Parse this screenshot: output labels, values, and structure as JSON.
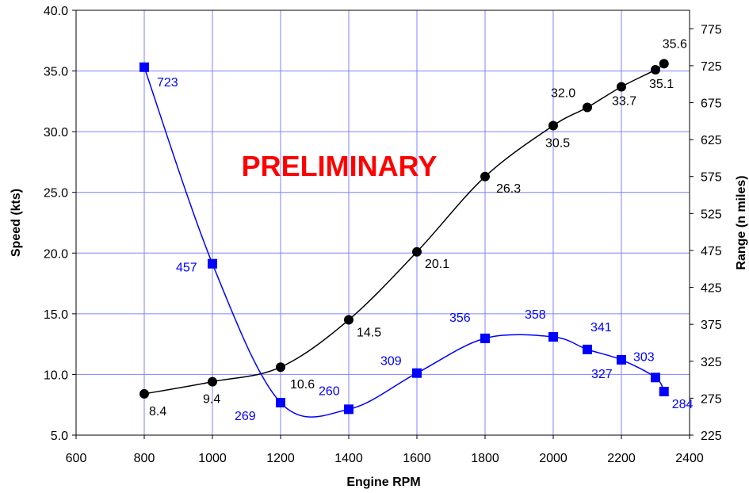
{
  "chart_data": {
    "type": "line",
    "title": "",
    "annotation": "PRELIMINARY",
    "xlabel": "Engine RPM",
    "ylabel": "Speed (kts)",
    "y2label": "Range (n miles)",
    "xlim": [
      600,
      2400
    ],
    "ylim": [
      5.0,
      40.0
    ],
    "y2lim": [
      225,
      800
    ],
    "x_ticks": [
      "600",
      "800",
      "1000",
      "1200",
      "1400",
      "1600",
      "1800",
      "2000",
      "2200",
      "2400"
    ],
    "y_ticks": [
      "5.0",
      "10.0",
      "15.0",
      "20.0",
      "25.0",
      "30.0",
      "35.0",
      "40.0"
    ],
    "y2_ticks": [
      "225",
      "275",
      "325",
      "375",
      "425",
      "475",
      "525",
      "575",
      "625",
      "675",
      "725",
      "775"
    ],
    "grid": true,
    "series": [
      {
        "axis": "left",
        "color": "#000000",
        "marker": "circle",
        "x": [
          800,
          1000,
          1200,
          1400,
          1600,
          1800,
          2000,
          2100,
          2200,
          2300,
          2325
        ],
        "y": [
          8.4,
          9.4,
          10.6,
          14.5,
          20.1,
          26.3,
          30.5,
          32.0,
          33.7,
          35.1,
          35.6
        ],
        "labels": [
          "8.4",
          "9.4",
          "10.6",
          "14.5",
          "20.1",
          "26.3",
          "30.5",
          "32.0",
          "33.7",
          "35.1",
          "35.6"
        ]
      },
      {
        "axis": "right",
        "color": "#0000ff",
        "marker": "square",
        "x": [
          800,
          1000,
          1200,
          1400,
          1600,
          1800,
          2000,
          2100,
          2200,
          2300,
          2325
        ],
        "y": [
          723,
          457,
          269,
          260,
          309,
          356,
          358,
          341,
          327,
          303,
          284
        ],
        "labels": [
          "723",
          "457",
          "269",
          "260",
          "309",
          "356",
          "358",
          "341",
          "327",
          "303",
          "284"
        ]
      }
    ]
  }
}
